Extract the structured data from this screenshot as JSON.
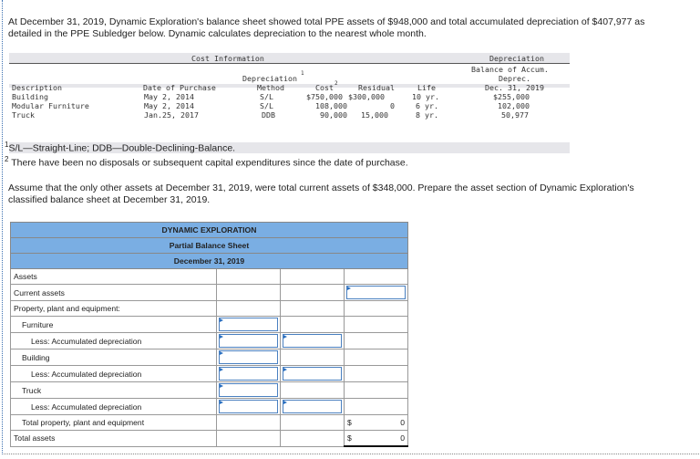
{
  "intro": "At December 31, 2019, Dynamic Exploration's balance sheet showed total PPE assets of $948,000 and total accumulated depreciation of $407,977 as detailed in the PPE Subledger below. Dynamic calculates depreciation to the nearest whole month.",
  "subledger": {
    "group_cost": "Cost Information",
    "group_dep": "Depreciation",
    "headers": {
      "description": "Description",
      "date": "Date of Purchase",
      "method1": "Depreciation",
      "method2": "Method",
      "method_sup": "1",
      "cost": "Cost",
      "cost_sup": "2",
      "residual": "Residual",
      "life": "Life",
      "bal1": "Balance of Accum.",
      "bal2": "Deprec.",
      "bal3": "Dec. 31, 2019"
    },
    "rows": [
      {
        "description": "Building",
        "date": "May 2, 2014",
        "method": "S/L",
        "cost": "$750,000",
        "residual": "$300,000",
        "life": "10 yr.",
        "balance": "$255,000"
      },
      {
        "description": "Modular Furniture",
        "date": "May 2, 2014",
        "method": "S/L",
        "cost": "108,000",
        "residual": "0",
        "life": "6 yr.",
        "balance": "102,000"
      },
      {
        "description": "Truck",
        "date": "Jan.25, 2017",
        "method": "DDB",
        "cost": "90,000",
        "residual": "15,000",
        "life": "8 yr.",
        "balance": "50,977"
      }
    ]
  },
  "footnote1": {
    "mark": "1",
    "text": "S/L—Straight-Line; DDB—Double-Declining-Balance."
  },
  "footnote2": {
    "mark": "2",
    "text": "There have been no disposals or subsequent capital expenditures since the date of purchase."
  },
  "instruction": "Assume that the only other assets at December 31, 2019, were total current assets of $348,000. Prepare the asset section of Dynamic Exploration's classified balance sheet at December 31, 2019.",
  "sheet": {
    "title": "DYNAMIC EXPLORATION",
    "subtitle": "Partial Balance Sheet",
    "date": "December 31, 2019",
    "rows": [
      "Assets",
      "Current assets",
      "Property, plant and equipment:",
      "Furniture",
      "Less: Accumulated depreciation",
      "Building",
      "Less: Accumulated depreciation",
      "Truck",
      "Less: Accumulated depreciation",
      "Total property, plant and equipment",
      "Total assets"
    ],
    "currency": "$",
    "total_ppe": "0",
    "total_assets": "0"
  }
}
